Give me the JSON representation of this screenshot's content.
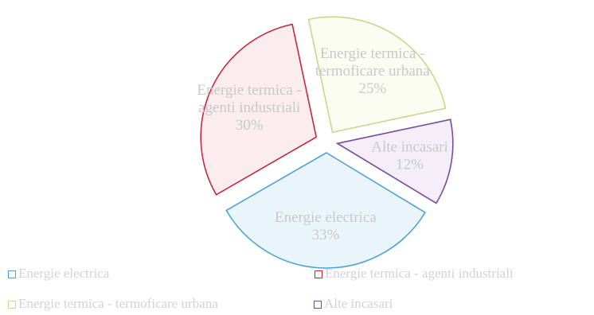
{
  "chart_data": {
    "type": "pie",
    "title": "",
    "exploded": true,
    "slices": [
      {
        "name": "Energie electrica",
        "lines": [
          "Energie electrica"
        ],
        "value": 33,
        "label": "33%",
        "color": "#4aa3d8",
        "fill": "#eaf5fb"
      },
      {
        "name": "Energie termica - agenti industriali",
        "lines": [
          "Energie termica -",
          "agenti industriali"
        ],
        "value": 30,
        "label": "30%",
        "color": "#c8283c",
        "fill": "#fbecef"
      },
      {
        "name": "Energie termica - termoficare urbana",
        "lines": [
          "Energie termica -",
          "termoficare urbana"
        ],
        "value": 25,
        "label": "25%",
        "color": "#c6d98a",
        "fill": "#fbfdf3"
      },
      {
        "name": "Alte incasari",
        "lines": [
          "Alte incasari"
        ],
        "value": 12,
        "label": "12%",
        "color": "#7b4a9e",
        "fill": "#f3eef7"
      }
    ],
    "legend": {
      "placement": "bottom",
      "entries": [
        {
          "label": "Energie electrica",
          "color": "#4aa3d8"
        },
        {
          "label": "Energie termica - agenti industriali",
          "color": "#c8283c"
        },
        {
          "label": "Energie termica - termoficare urbana",
          "color": "#c6d98a"
        },
        {
          "label": "Alte incasari",
          "color": "#7b4a9e"
        }
      ]
    }
  }
}
